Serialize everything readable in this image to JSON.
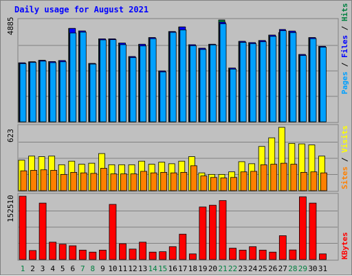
{
  "chart_data": {
    "type": "bar",
    "title": "Daily usage for August 2021",
    "days": [
      "1",
      "2",
      "3",
      "4",
      "5",
      "6",
      "7",
      "8",
      "9",
      "10",
      "11",
      "12",
      "13",
      "14",
      "15",
      "16",
      "17",
      "18",
      "19",
      "20",
      "21",
      "22",
      "23",
      "24",
      "25",
      "26",
      "27",
      "28",
      "29",
      "30",
      "31"
    ],
    "weekend_days": [
      "1",
      "7",
      "8",
      "14",
      "15",
      "21",
      "22",
      "28",
      "29"
    ],
    "panels": {
      "hits": {
        "max_label": "4885",
        "max": 4885,
        "legend": [
          {
            "key": "pages",
            "label": "Pages",
            "color": "#00a0ff"
          },
          {
            "key": "files",
            "label": "Files",
            "color": "#0000ff"
          },
          {
            "key": "hits",
            "label": "Hits",
            "color": "#008040"
          }
        ],
        "series": [
          {
            "name": "Hits",
            "values": [
              2830,
              2880,
              2950,
              2890,
              2940,
              4480,
              4360,
              2800,
              3980,
              3980,
              3780,
              3130,
              3720,
              4040,
              2440,
              4330,
              4550,
              3700,
              3530,
              3720,
              4885,
              2580,
              3860,
              3800,
              3900,
              4160,
              4280,
              4350,
              3230,
              4040,
              3620
            ]
          },
          {
            "name": "Files",
            "values": [
              2830,
              2880,
              2950,
              2890,
              2940,
              4480,
              4360,
              2800,
              3980,
              3980,
              3780,
              3130,
              3720,
              4040,
              2440,
              4330,
              4550,
              3700,
              3530,
              3720,
              4780,
              2580,
              3860,
              3800,
              3900,
              4160,
              4430,
              4350,
              3230,
              4040,
              3620
            ]
          },
          {
            "name": "Pages",
            "values": [
              2790,
              2850,
              2910,
              2840,
              2880,
              4260,
              4300,
              2770,
              3930,
              3940,
              3700,
              3080,
              3640,
              3990,
              2390,
              4290,
              4410,
              3650,
              3470,
              3690,
              4700,
              2530,
              3810,
              3750,
              3840,
              4100,
              4370,
              4280,
              3180,
              3990,
              3580
            ]
          }
        ]
      },
      "visits": {
        "max_label": "623",
        "max": 623,
        "legend": [
          {
            "key": "sites",
            "label": "Sites",
            "color": "#ff8000"
          },
          {
            "key": "visits",
            "label": "Visits",
            "color": "#ffff00"
          }
        ],
        "series": [
          {
            "name": "Visits",
            "values": [
              300,
              340,
              335,
              340,
              255,
              290,
              260,
              270,
              365,
              255,
              255,
              255,
              290,
              260,
              280,
              265,
              290,
              335,
              175,
              160,
              160,
              185,
              285,
              265,
              435,
              520,
              623,
              465,
              460,
              450,
              340
            ]
          },
          {
            "name": "Sites",
            "values": [
              195,
              200,
              205,
              200,
              160,
              180,
              175,
              170,
              220,
              165,
              165,
              165,
              190,
              175,
              180,
              175,
              180,
              245,
              145,
              130,
              125,
              130,
              185,
              190,
              255,
              260,
              270,
              260,
              180,
              185,
              175
            ]
          }
        ]
      },
      "kbytes": {
        "max_label": "152510",
        "max": 152510,
        "legend": [
          {
            "key": "kbytes",
            "label": "KBytes",
            "color": "#ff0000"
          }
        ],
        "series": [
          {
            "name": "KBytes",
            "values": [
              152510,
              21600,
              135800,
              41700,
              36800,
              33000,
              22600,
              17800,
              22600,
              132700,
              38000,
              25100,
              41700,
              17800,
              18800,
              30900,
              61000,
              13500,
              126400,
              130700,
              142000,
              27200,
              22600,
              30900,
              22600,
              17800,
              57300,
              23000,
              151000,
              135800,
              13500
            ]
          }
        ]
      }
    }
  }
}
